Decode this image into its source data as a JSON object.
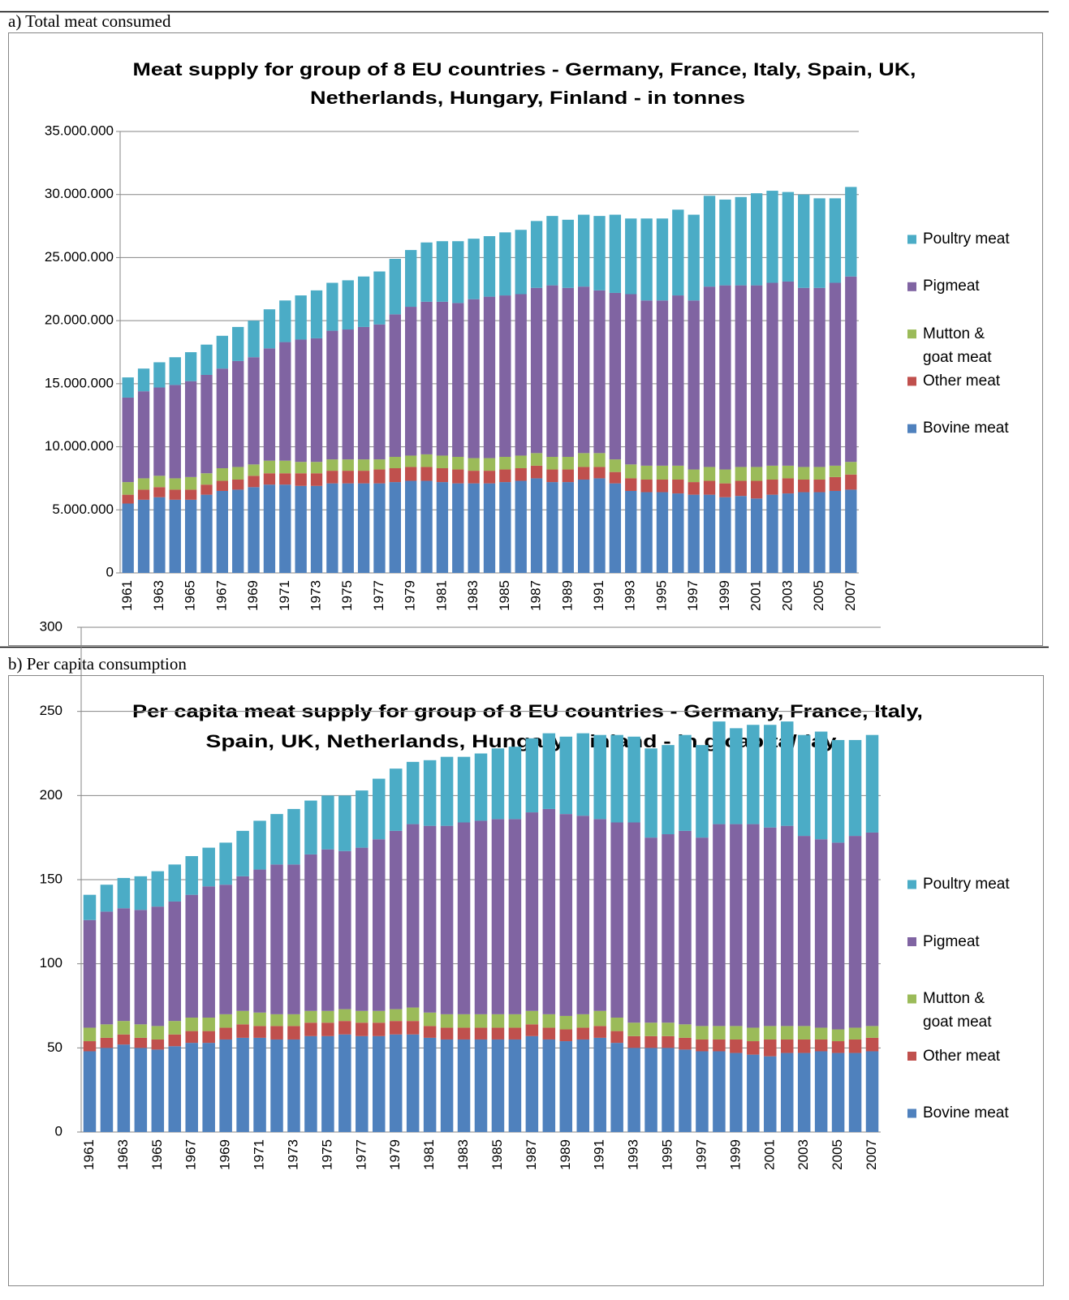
{
  "chart_data": [
    {
      "type": "bar",
      "stacked": true,
      "panel_label": "a) Total meat consumed",
      "title": [
        "Meat supply for group of 8 EU countries - Germany, France, Italy, Spain, UK,",
        "Netherlands, Hungary, Finland - in tonnes"
      ],
      "categories": [
        "1961",
        null,
        "1963",
        null,
        "1965",
        null,
        "1967",
        null,
        "1969",
        null,
        "1971",
        null,
        "1973",
        null,
        "1975",
        null,
        "1977",
        null,
        "1979",
        null,
        "1981",
        null,
        "1983",
        null,
        "1985",
        null,
        "1987",
        null,
        "1989",
        null,
        "1991",
        null,
        "1993",
        null,
        "1995",
        null,
        "1997",
        null,
        "1999",
        null,
        "2001",
        null,
        "2003",
        null,
        "2005",
        null,
        "2007"
      ],
      "ylim": [
        0,
        35000000
      ],
      "yticks": [
        0,
        {
          "value": 5000000,
          "label": "5.000.000"
        },
        {
          "value": 10000000,
          "label": "10.000.000"
        },
        {
          "value": 15000000,
          "label": "15.000.000"
        },
        {
          "value": 20000000,
          "label": "20.000.000"
        },
        {
          "value": 25000000,
          "label": "25.000.000"
        },
        {
          "value": 30000000,
          "label": "30.000.000"
        },
        {
          "value": 35000000,
          "label": "35.000.000"
        }
      ],
      "grid": true,
      "legend": "right",
      "series": [
        {
          "name": "Bovine meat",
          "color": "#4f81bd",
          "values": [
            5500000,
            5800000,
            6000000,
            5800000,
            5800000,
            6200000,
            6500000,
            6600000,
            6800000,
            7000000,
            7000000,
            6900000,
            6900000,
            7100000,
            7100000,
            7100000,
            7100000,
            7200000,
            7300000,
            7300000,
            7200000,
            7100000,
            7100000,
            7100000,
            7200000,
            7300000,
            7500000,
            7200000,
            7200000,
            7400000,
            7500000,
            7100000,
            6500000,
            6400000,
            6400000,
            6300000,
            6200000,
            6200000,
            6000000,
            6100000,
            5900000,
            6200000,
            6300000,
            6400000,
            6400000,
            6500000,
            6600000
          ]
        },
        {
          "name": "Other meat",
          "color": "#c0504d",
          "values": [
            700000,
            800000,
            800000,
            800000,
            800000,
            800000,
            800000,
            800000,
            900000,
            900000,
            900000,
            1000000,
            1000000,
            1000000,
            1000000,
            1000000,
            1100000,
            1100000,
            1100000,
            1100000,
            1100000,
            1100000,
            1000000,
            1000000,
            1000000,
            1000000,
            1000000,
            1000000,
            1000000,
            1000000,
            900000,
            900000,
            1000000,
            1000000,
            1000000,
            1100000,
            1000000,
            1100000,
            1100000,
            1200000,
            1400000,
            1200000,
            1200000,
            1000000,
            1000000,
            1100000,
            1200000
          ]
        },
        {
          "name": "Mutton & goat meat",
          "color": "#9bbb59",
          "values": [
            1000000,
            900000,
            900000,
            900000,
            1000000,
            900000,
            1000000,
            1000000,
            900000,
            1000000,
            1000000,
            900000,
            900000,
            900000,
            900000,
            900000,
            800000,
            900000,
            900000,
            1000000,
            1000000,
            1000000,
            1000000,
            1000000,
            1000000,
            1000000,
            1000000,
            1000000,
            1000000,
            1100000,
            1100000,
            1000000,
            1100000,
            1100000,
            1100000,
            1100000,
            1000000,
            1100000,
            1100000,
            1100000,
            1100000,
            1100000,
            1000000,
            1000000,
            1000000,
            900000,
            1000000
          ]
        },
        {
          "name": "Pigmeat",
          "color": "#8064a2",
          "values": [
            6700000,
            6900000,
            7000000,
            7400000,
            7600000,
            7800000,
            7900000,
            8400000,
            8500000,
            8900000,
            9400000,
            9700000,
            9800000,
            10200000,
            10300000,
            10500000,
            10700000,
            11300000,
            11800000,
            12100000,
            12200000,
            12200000,
            12600000,
            12800000,
            12800000,
            12800000,
            13100000,
            13600000,
            13400000,
            13200000,
            12900000,
            13200000,
            13500000,
            13100000,
            13100000,
            13500000,
            13400000,
            14300000,
            14600000,
            14400000,
            14400000,
            14500000,
            14600000,
            14200000,
            14200000,
            14500000,
            14700000
          ]
        },
        {
          "name": "Poultry meat",
          "color": "#4bacc6",
          "values": [
            1600000,
            1800000,
            2000000,
            2200000,
            2300000,
            2400000,
            2600000,
            2700000,
            2900000,
            3100000,
            3300000,
            3500000,
            3800000,
            3800000,
            3900000,
            4000000,
            4200000,
            4400000,
            4500000,
            4700000,
            4800000,
            4900000,
            4800000,
            4800000,
            5000000,
            5100000,
            5300000,
            5500000,
            5400000,
            5700000,
            5900000,
            6200000,
            6000000,
            6500000,
            6500000,
            6800000,
            6800000,
            7200000,
            6800000,
            7000000,
            7300000,
            7300000,
            7100000,
            7400000,
            7100000,
            6700000,
            7100000
          ]
        }
      ]
    },
    {
      "type": "bar",
      "stacked": true,
      "panel_label": "b) Per capita consumption",
      "title": [
        "Per capita meat supply for group of 8 EU countries - Germany, France, Italy,",
        "Spain, UK,  Netherlands, Hungary, Finland - in g/capita/day"
      ],
      "categories": [
        "1961",
        null,
        "1963",
        null,
        "1965",
        null,
        "1967",
        null,
        "1969",
        null,
        "1971",
        null,
        "1973",
        null,
        "1975",
        null,
        "1977",
        null,
        "1979",
        null,
        "1981",
        null,
        "1983",
        null,
        "1985",
        null,
        "1987",
        null,
        "1989",
        null,
        "1991",
        null,
        "1993",
        null,
        "1995",
        null,
        "1997",
        null,
        "1999",
        null,
        "2001",
        null,
        "2003",
        null,
        "2005",
        null,
        "2007"
      ],
      "ylim": [
        0,
        300
      ],
      "yticks": [
        0,
        50,
        100,
        150,
        200,
        250,
        300
      ],
      "grid": true,
      "legend": "right",
      "series": [
        {
          "name": "Bovine meat",
          "color": "#4f81bd",
          "values": [
            48,
            50,
            52,
            50,
            49,
            51,
            53,
            53,
            55,
            56,
            56,
            55,
            55,
            57,
            57,
            58,
            57,
            57,
            58,
            58,
            56,
            55,
            55,
            55,
            55,
            55,
            57,
            55,
            54,
            55,
            56,
            53,
            50,
            50,
            50,
            49,
            48,
            48,
            47,
            46,
            45,
            47,
            47,
            48,
            47,
            47,
            48
          ]
        },
        {
          "name": "Other meat",
          "color": "#c0504d",
          "values": [
            6,
            6,
            6,
            6,
            6,
            7,
            7,
            7,
            7,
            8,
            7,
            8,
            8,
            8,
            8,
            8,
            8,
            8,
            8,
            8,
            7,
            7,
            7,
            7,
            7,
            7,
            7,
            7,
            7,
            7,
            7,
            7,
            7,
            7,
            7,
            7,
            7,
            7,
            8,
            8,
            10,
            8,
            8,
            7,
            7,
            8,
            8
          ]
        },
        {
          "name": "Mutton & goat meat",
          "color": "#9bbb59",
          "values": [
            8,
            8,
            8,
            8,
            8,
            8,
            8,
            8,
            8,
            8,
            8,
            7,
            7,
            7,
            7,
            7,
            7,
            7,
            7,
            8,
            8,
            8,
            8,
            8,
            8,
            8,
            8,
            8,
            8,
            8,
            9,
            8,
            8,
            8,
            8,
            8,
            8,
            8,
            8,
            8,
            8,
            8,
            8,
            7,
            7,
            7,
            7
          ]
        },
        {
          "name": "Pigmeat",
          "color": "#8064a2",
          "values": [
            64,
            67,
            67,
            68,
            71,
            71,
            73,
            78,
            77,
            80,
            85,
            89,
            89,
            93,
            96,
            94,
            97,
            102,
            106,
            109,
            111,
            112,
            114,
            115,
            116,
            116,
            118,
            122,
            120,
            118,
            114,
            116,
            119,
            110,
            112,
            115,
            112,
            120,
            120,
            121,
            118,
            119,
            113,
            112,
            111,
            114,
            115
          ]
        },
        {
          "name": "Poultry meat",
          "color": "#4bacc6",
          "values": [
            15,
            16,
            18,
            20,
            21,
            22,
            23,
            23,
            25,
            27,
            29,
            30,
            33,
            32,
            32,
            33,
            34,
            36,
            37,
            37,
            39,
            41,
            39,
            40,
            42,
            43,
            44,
            45,
            46,
            49,
            50,
            52,
            51,
            53,
            53,
            57,
            55,
            61,
            57,
            59,
            61,
            62,
            60,
            64,
            61,
            57,
            58
          ]
        }
      ]
    }
  ]
}
